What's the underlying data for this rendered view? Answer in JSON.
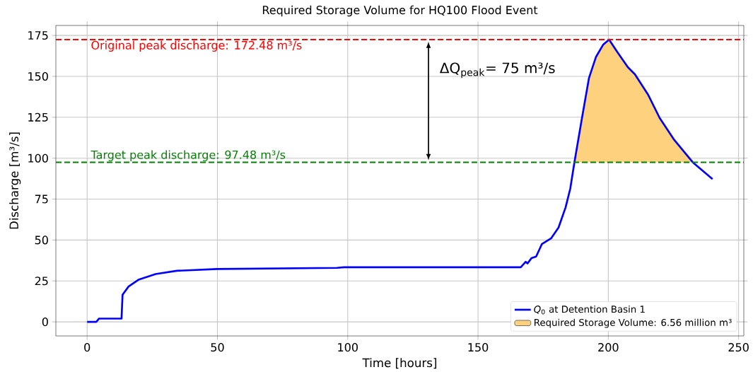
{
  "chart_data": {
    "type": "line",
    "title": "Required Storage Volume for HQ100 Flood Event",
    "xlabel": "Time [hours]",
    "ylabel": "Discharge [m³/s]",
    "xlim": [
      -12,
      252
    ],
    "ylim": [
      -8.6,
      181.1
    ],
    "xticks": [
      0,
      50,
      100,
      150,
      200,
      250
    ],
    "yticks": [
      0,
      25,
      50,
      75,
      100,
      125,
      150,
      175
    ],
    "grid": true,
    "legend": "bottom right",
    "series": [
      {
        "name": "*Q*$_{0}$ at Detention Basin 1",
        "color": "#0000ff",
        "x": [
          0,
          3.5,
          4.6,
          13.2,
          13.6,
          15.9,
          19.9,
          26.3,
          34.4,
          49.8,
          95.9,
          98.6,
          166.4,
          168.3,
          169,
          170.5,
          172.3,
          174.5,
          178.1,
          180.9,
          183.6,
          185.4,
          187,
          189.9,
          192.6,
          195.3,
          198,
          200.3,
          203.4,
          207.5,
          210.2,
          215.2,
          219.7,
          225.1,
          232.4,
          240
        ],
        "values": [
          0,
          0,
          2,
          2,
          16.6,
          21.6,
          25.9,
          29.2,
          31.2,
          32.3,
          33,
          33.4,
          33.4,
          36.7,
          35.7,
          38.9,
          39.9,
          47.5,
          51.1,
          57.6,
          69.9,
          81.4,
          97.5,
          124.6,
          149.1,
          162,
          169.3,
          172.5,
          165,
          155.6,
          151.3,
          139,
          124.6,
          111.6,
          97.5,
          87.2
        ]
      },
      {
        "name": "Required Storage Volume: 6.56 million m³",
        "type": "area",
        "color": "#fed17f",
        "x": [
          187,
          189.9,
          192.6,
          195.3,
          198,
          200.3,
          203.4,
          207.5,
          210.2,
          215.2,
          219.7,
          225.1,
          232.4
        ],
        "values": [
          97.5,
          124.6,
          149.1,
          162,
          169.3,
          172.5,
          165,
          155.6,
          151.3,
          139,
          124.6,
          111.6,
          97.5
        ]
      }
    ],
    "ref_lines": [
      {
        "axis": "y",
        "value": 172.48,
        "label": "Original peak discharge: 172.48 m³/s",
        "color": "#ff0000",
        "line_style": "dashed"
      },
      {
        "axis": "y",
        "value": 97.48,
        "label": "Target peak discharge: 97.48 m³/s",
        "color": "#008000",
        "line_style": "dashed"
      }
    ],
    "annotations": [
      "ΔQ$_{peak}$= 75 m³/s"
    ]
  }
}
